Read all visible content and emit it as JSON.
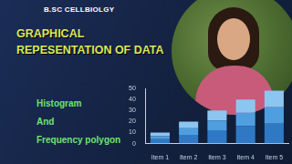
{
  "header": {
    "channel": "B.SC CELLBIOLGY"
  },
  "title_lines": [
    "GRAPHICAL",
    "REPESENTATION OF DATA"
  ],
  "subtitle_lines": [
    "Histogram",
    "And",
    "Frequency polygon"
  ],
  "chart_data": {
    "type": "bar",
    "stacked": true,
    "categories": [
      "Item 1",
      "Item 2",
      "Item 3",
      "Item 4",
      "Item 5"
    ],
    "series": [
      {
        "color": "#2f79c4",
        "values": [
          4,
          8,
          12,
          16,
          18
        ]
      },
      {
        "color": "#4f9ee0",
        "values": [
          3,
          6,
          9,
          12,
          15
        ]
      },
      {
        "color": "#8cc6f0",
        "values": [
          3,
          6,
          9,
          12,
          15
        ]
      }
    ],
    "ylim": [
      0,
      50
    ],
    "yticks": [
      0,
      10,
      20,
      30,
      40,
      50
    ],
    "grid": false
  }
}
